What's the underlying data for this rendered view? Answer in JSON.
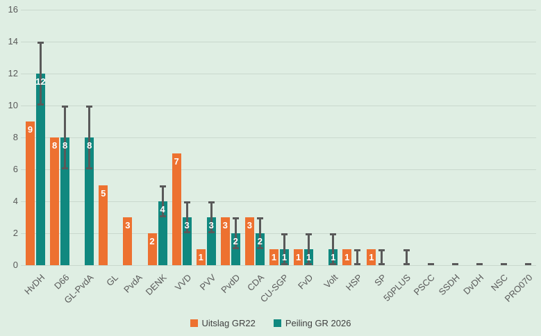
{
  "chart_data": {
    "type": "bar",
    "title": "",
    "xlabel": "",
    "ylabel": "",
    "ylim": [
      0,
      16
    ],
    "yticks": [
      0,
      2,
      4,
      6,
      8,
      10,
      12,
      14,
      16
    ],
    "grid": true,
    "legend_position": "bottom",
    "background_color": "#dfeee3",
    "gridline_color": "#c9d8cd",
    "error_bar_color": "#595959",
    "axis_text_color": "#595959",
    "categories": [
      "HvDH",
      "D66",
      "GL-PvdA",
      "GL",
      "PvdA",
      "DENK",
      "VVD",
      "PVV",
      "PvdD",
      "CDA",
      "CU-SGP",
      "FvD",
      "Volt",
      "HSP",
      "SP",
      "50PLUS",
      "PSCC",
      "SSDH",
      "DvDH",
      "NSC",
      "PRO070"
    ],
    "series": [
      {
        "name": "Uitslag GR22",
        "color": "#ed7130",
        "values": [
          9,
          8,
          null,
          5,
          3,
          2,
          7,
          1,
          3,
          3,
          1,
          1,
          null,
          1,
          1,
          null,
          null,
          null,
          null,
          null,
          null
        ]
      },
      {
        "name": "Peiling GR 2026",
        "color": "#10887f",
        "values": [
          12,
          8,
          8,
          null,
          null,
          4,
          3,
          3,
          2,
          2,
          1,
          1,
          1,
          0,
          0,
          0,
          0,
          0,
          0,
          0,
          0
        ],
        "error_low": [
          10,
          6,
          6,
          null,
          null,
          3,
          2,
          2,
          1,
          1,
          0,
          0,
          0,
          0,
          0,
          0,
          0,
          0,
          0,
          0,
          0
        ],
        "error_high": [
          14,
          10,
          10,
          null,
          null,
          5,
          4,
          4,
          3,
          3,
          2,
          2,
          2,
          1,
          1,
          1,
          0,
          0,
          0,
          0,
          0
        ]
      }
    ]
  },
  "legend": {
    "items": [
      {
        "label": "Uitslag GR22"
      },
      {
        "label": "Peiling GR 2026"
      }
    ]
  }
}
